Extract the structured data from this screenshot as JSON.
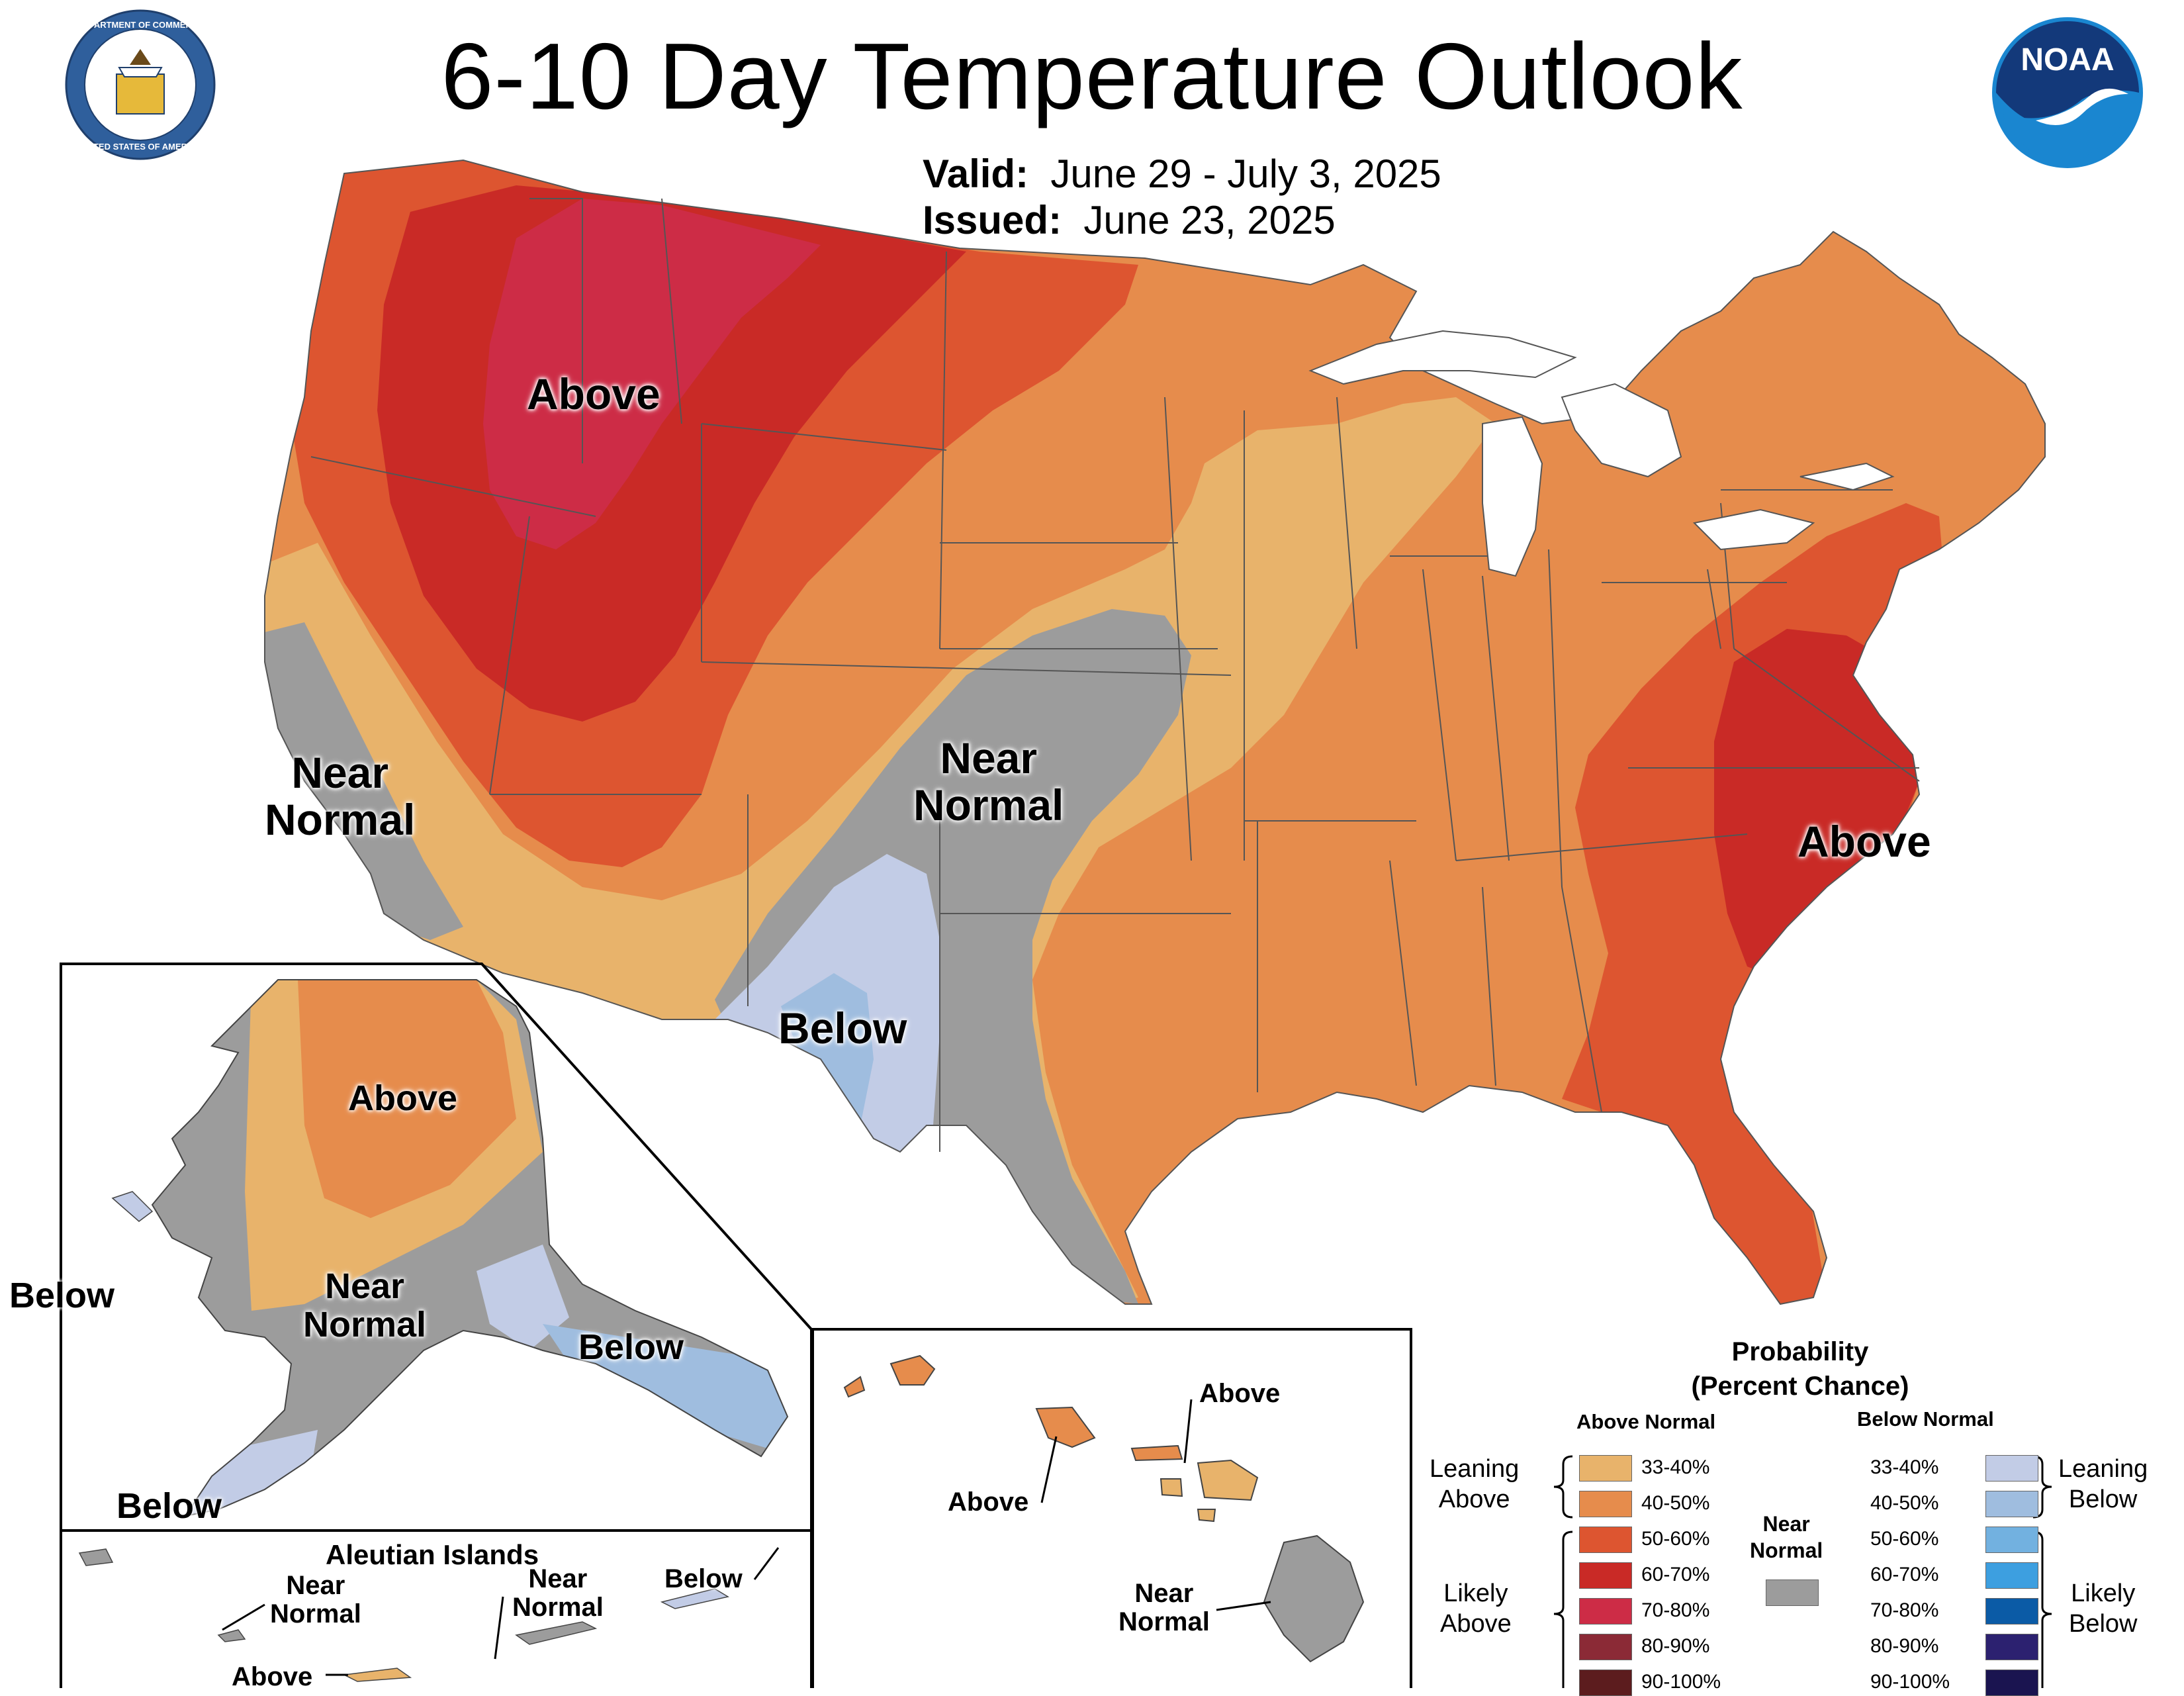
{
  "header": {
    "title": "6-10 Day Temperature Outlook",
    "valid_label": "Valid:",
    "valid_value": "June 29 - July 3, 2025",
    "issued_label": "Issued:",
    "issued_value": "June 23, 2025"
  },
  "logos": {
    "commerce_seal": "seal-icon",
    "commerce_seal_text": "DEPARTMENT OF COMMERCE · UNITED STATES OF AMERICA",
    "noaa": "noaa-logo",
    "noaa_text": "NOAA"
  },
  "map_labels": {
    "conus_above_west": "Above",
    "conus_near_west": "Near\nNormal",
    "conus_near_central": "Near\nNormal",
    "conus_below_sw": "Below",
    "conus_above_east": "Above",
    "ak_above": "Above",
    "ak_near": "Near\nNormal",
    "ak_below_se": "Below",
    "ak_below_west": "Below",
    "ak_below_sw": "Below",
    "aleutian_title": "Aleutian Islands",
    "aleutian_near_1": "Near\nNormal",
    "aleutian_near_2": "Near\nNormal",
    "aleutian_below": "Below",
    "aleutian_above": "Above",
    "hi_above_1": "Above",
    "hi_above_2": "Above",
    "hi_near": "Near\nNormal"
  },
  "legend": {
    "title": "Probability\n(Percent Chance)",
    "above_header": "Above Normal",
    "below_header": "Below Normal",
    "near_label": "Near\nNormal",
    "leaning_above": "Leaning\nAbove",
    "likely_above": "Likely\nAbove",
    "leaning_below": "Leaning\nBelow",
    "likely_below": "Likely\nBelow",
    "above_bins": [
      {
        "label": "33-40%",
        "color": "#e8b36b"
      },
      {
        "label": "40-50%",
        "color": "#e68c4c"
      },
      {
        "label": "50-60%",
        "color": "#dd5530"
      },
      {
        "label": "60-70%",
        "color": "#c92a26"
      },
      {
        "label": "70-80%",
        "color": "#cd2c46"
      },
      {
        "label": "80-90%",
        "color": "#8b2a36"
      },
      {
        "label": "90-100%",
        "color": "#5c1c1e"
      }
    ],
    "below_bins": [
      {
        "label": "33-40%",
        "color": "#c2cce6"
      },
      {
        "label": "40-50%",
        "color": "#9fbddf"
      },
      {
        "label": "50-60%",
        "color": "#72b1e0"
      },
      {
        "label": "60-70%",
        "color": "#3d9fe0"
      },
      {
        "label": "70-80%",
        "color": "#0b5ba6"
      },
      {
        "label": "80-90%",
        "color": "#2c2170"
      },
      {
        "label": "90-100%",
        "color": "#1a1450"
      }
    ],
    "near_color": "#9c9c9c"
  }
}
